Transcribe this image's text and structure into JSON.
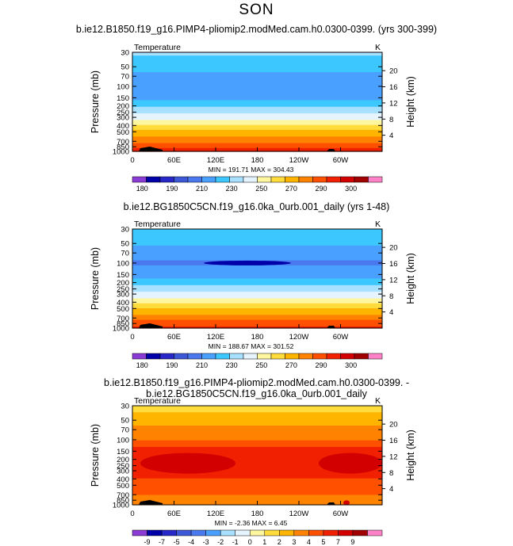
{
  "page": {
    "title": "SON"
  },
  "colors": {
    "temp_levels": [
      "#8c3cd6",
      "#0000a8",
      "#2828c8",
      "#3c58d6",
      "#4a78ee",
      "#4aa0ff",
      "#3cc8ff",
      "#a8e0ff",
      "#e6f4ff",
      "#fff6a0",
      "#ffdc3c",
      "#ffb400",
      "#ff8200",
      "#ff5000",
      "#f02000",
      "#d20000",
      "#a00000",
      "#ff82c8"
    ],
    "diff_levels": [
      "#8c3cd6",
      "#0000a8",
      "#2828c8",
      "#3c58d6",
      "#4a78ee",
      "#4aa0ff",
      "#a8e0ff",
      "#e6f4ff",
      "#fff6a0",
      "#ffdc3c",
      "#ffb400",
      "#ff8200",
      "#ff5000",
      "#f02000",
      "#d20000",
      "#a00000",
      "#ff82c8"
    ],
    "topography": "#000000"
  },
  "chart_data": [
    {
      "type": "heatmap",
      "title": "b.ie12.B1850.f19_g16.PIMP4-pliomip2.modMed.cam.h0.0300-0399. (yrs 300-399)",
      "variable": "Temperature",
      "units": "K",
      "ylabel": "Pressure  (mb)",
      "ylabel_right": "Height  (km)",
      "x_ticks": [
        "0",
        "60E",
        "120E",
        "180",
        "120W",
        "60W"
      ],
      "y_ticks": [
        "30",
        "50",
        "70",
        "100",
        "150",
        "200",
        "250",
        "300",
        "400",
        "500",
        "700",
        "850",
        "1000"
      ],
      "y_right_ticks": [
        "20",
        "16",
        "12",
        "8",
        "4"
      ],
      "stats": "MIN = 191.71   MAX = 304.43",
      "colorbar_labels": [
        "180",
        "190",
        "210",
        "230",
        "250",
        "270",
        "290",
        "300"
      ],
      "profile_pressure": [
        30,
        50,
        70,
        100,
        150,
        200,
        250,
        300,
        400,
        500,
        700,
        850,
        1000
      ],
      "profile_value": [
        222,
        214,
        206,
        200,
        208,
        218,
        228,
        236,
        250,
        262,
        278,
        288,
        296
      ]
    },
    {
      "type": "heatmap",
      "title": "b.ie12.BG1850C5CN.f19_g16.0ka_0urb.001_daily (yrs 1-48)",
      "variable": "Temperature",
      "units": "K",
      "ylabel": "Pressure  (mb)",
      "ylabel_right": "Height  (km)",
      "x_ticks": [
        "0",
        "60E",
        "120E",
        "180",
        "120W",
        "60W"
      ],
      "y_ticks": [
        "30",
        "50",
        "70",
        "100",
        "150",
        "200",
        "250",
        "300",
        "400",
        "500",
        "700",
        "850",
        "1000"
      ],
      "y_right_ticks": [
        "20",
        "16",
        "12",
        "8",
        "4"
      ],
      "stats": "MIN = 188.67   MAX = 301.52",
      "colorbar_labels": [
        "180",
        "190",
        "210",
        "230",
        "250",
        "270",
        "290",
        "300"
      ],
      "profile_pressure": [
        30,
        50,
        70,
        100,
        150,
        200,
        250,
        300,
        400,
        500,
        700,
        850,
        1000
      ],
      "profile_value": [
        220,
        212,
        204,
        198,
        206,
        216,
        226,
        234,
        248,
        260,
        276,
        286,
        294
      ]
    },
    {
      "type": "heatmap",
      "title": "b.ie12.B1850.f19_g16.PIMP4-pliomip2.modMed.cam.h0.0300-0399. - b.ie12.BG1850C5CN.f19_g16.0ka_0urb.001_daily",
      "variable": "Temperature",
      "units": "K",
      "ylabel": "Pressure  (mb)",
      "ylabel_right": "Height  (km)",
      "x_ticks": [
        "0",
        "60E",
        "120E",
        "180",
        "120W",
        "60W"
      ],
      "y_ticks": [
        "30",
        "50",
        "70",
        "100",
        "150",
        "200",
        "250",
        "300",
        "400",
        "500",
        "700",
        "850",
        "1000"
      ],
      "y_right_ticks": [
        "20",
        "16",
        "12",
        "8",
        "4"
      ],
      "stats": "MIN =   -2.36   MAX =    6.45",
      "colorbar_labels": [
        "-9",
        "-7",
        "-5",
        "-4",
        "-3",
        "-2",
        "-1",
        "0",
        "1",
        "2",
        "3",
        "4",
        "5",
        "7",
        "9"
      ],
      "profile_pressure": [
        30,
        50,
        70,
        100,
        150,
        200,
        250,
        300,
        400,
        500,
        700,
        850,
        1000
      ],
      "profile_value": [
        0.5,
        1.5,
        2.5,
        3,
        4.5,
        5,
        5,
        4.5,
        4,
        3.5,
        3,
        2.8,
        2.5
      ]
    }
  ]
}
